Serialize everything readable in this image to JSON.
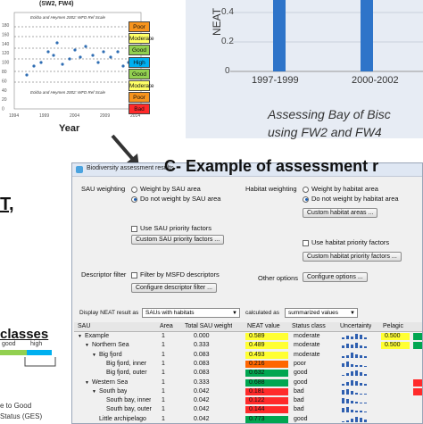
{
  "left_chart": {
    "title_fragment": "(SW2, FW4)",
    "legend_top": "Eckba and Heymen 2002: WFD Ref Scale",
    "legend_bottom": "Eckba and Heymen 2002: WFD Ref Scale",
    "xlabel": "Year",
    "y_ticks": [
      "180",
      "160",
      "140",
      "120",
      "100",
      "80",
      "60",
      "40",
      "20",
      "0"
    ],
    "x_ticks": [
      "1994",
      "1999",
      "2004",
      "2009",
      "2014"
    ],
    "classes": [
      {
        "label": "Poor",
        "color": "#f7941d"
      },
      {
        "label": "Moderate",
        "color": "#ffff66"
      },
      {
        "label": "Good",
        "color": "#92d050"
      },
      {
        "label": "High",
        "color": "#00b0f0"
      },
      {
        "label": "Good",
        "color": "#92d050"
      },
      {
        "label": "Moderate",
        "color": "#ffff66"
      },
      {
        "label": "Poor",
        "color": "#f7941d"
      },
      {
        "label": "Bad",
        "color": "#ff2a2a"
      }
    ],
    "thresholds": [
      "poor",
      "mod",
      "good",
      "high",
      "mod",
      "poor"
    ]
  },
  "bar_chart": {
    "ylabel": "NEAT",
    "y_ticks": [
      "0.4",
      "0.2",
      "0"
    ],
    "categories": [
      "1997-1999",
      "2000-2002"
    ],
    "bar_color": "#2e74c9",
    "caption_line1": "Assessing Bay of Bisc",
    "caption_line2": "using FW2 and FW4"
  },
  "heading": "C- Example of assessment r",
  "left_text": {
    "t": "T,",
    "classes": "classes",
    "good": "good",
    "high": "high",
    "to_good": "e to Good",
    "status": "Status (GES)"
  },
  "dialog": {
    "title": "Biodiversity assessment results",
    "sau_weighting_label": "SAU weighting",
    "sau_option_1": "Weight by SAU area",
    "sau_option_2": "Do not weight by SAU area",
    "habitat_weighting_label": "Habitat weighting",
    "hab_option_1": "Weight by habitat area",
    "hab_option_2": "Do not weight by habitat area",
    "custom_habitat_areas": "Custom habitat areas ...",
    "use_sau_priority": "Use SAU priority factors",
    "custom_sau_priority": "Custom SAU priority factors ...",
    "use_habitat_priority": "Use habitat priority factors",
    "custom_habitat_priority": "Custom habitat priority factors ...",
    "descriptor_filter_label": "Descriptor filter",
    "filter_msfd": "Filter by MSFD descriptors",
    "configure_descriptor_filter": "Configure descriptor filter ...",
    "other_options_label": "Other options",
    "configure_options": "Configure options ...",
    "display_label": "Display NEAT result as",
    "display_value": "SAUs with habitats",
    "calculated_label": "calculated as",
    "calculated_value": "summarized values"
  },
  "table": {
    "headers": [
      "SAU",
      "Area",
      "Total SAU weight",
      "NEAT value",
      "Status class",
      "Uncertainty",
      "Pelagic",
      ""
    ],
    "rows": [
      {
        "sau": "Example",
        "indent": 0,
        "tw": "v",
        "area": "1",
        "weight": "0.000",
        "neat": "0.589",
        "color": "#ffff33",
        "status": "moderate",
        "pel": "0.500",
        "pelcolor": "#ffff33",
        "last": "#00a651"
      },
      {
        "sau": "Northern Sea",
        "indent": 1,
        "tw": "v",
        "area": "1",
        "weight": "0.333",
        "neat": "0.489",
        "color": "#ffff33",
        "status": "moderate",
        "pel": "0.500",
        "pelcolor": "#ffff33",
        "last": "#00a651"
      },
      {
        "sau": "Big fjord",
        "indent": 2,
        "tw": "v",
        "area": "1",
        "weight": "0.083",
        "neat": "0.493",
        "color": "#ffff33",
        "status": "moderate",
        "pel": "",
        "pelcolor": "",
        "last": ""
      },
      {
        "sau": "Big fjord, inner",
        "indent": 3,
        "tw": "",
        "area": "1",
        "weight": "0.083",
        "neat": "0.216",
        "color": "#ff6600",
        "status": "poor",
        "pel": "",
        "pelcolor": "",
        "last": ""
      },
      {
        "sau": "Big fjord, outer",
        "indent": 3,
        "tw": "",
        "area": "1",
        "weight": "0.083",
        "neat": "0.632",
        "color": "#00a651",
        "status": "good",
        "pel": "",
        "pelcolor": "",
        "last": ""
      },
      {
        "sau": "Western Sea",
        "indent": 1,
        "tw": "v",
        "area": "1",
        "weight": "0.333",
        "neat": "0.688",
        "color": "#00a651",
        "status": "good",
        "pel": "",
        "pelcolor": "",
        "last": "#ff2a2a"
      },
      {
        "sau": "South bay",
        "indent": 2,
        "tw": "v",
        "area": "1",
        "weight": "0.042",
        "neat": "0.181",
        "color": "#ff2a2a",
        "status": "bad",
        "pel": "",
        "pelcolor": "",
        "last": "#ff2a2a"
      },
      {
        "sau": "South bay, inner",
        "indent": 3,
        "tw": "",
        "area": "1",
        "weight": "0.042",
        "neat": "0.122",
        "color": "#ff2a2a",
        "status": "bad",
        "pel": "",
        "pelcolor": "",
        "last": ""
      },
      {
        "sau": "South bay, outer",
        "indent": 3,
        "tw": "",
        "area": "1",
        "weight": "0.042",
        "neat": "0.144",
        "color": "#ff2a2a",
        "status": "bad",
        "pel": "",
        "pelcolor": "",
        "last": ""
      },
      {
        "sau": "Little archipelago",
        "indent": 2,
        "tw": "",
        "area": "1",
        "weight": "0.042",
        "neat": "0.773",
        "color": "#00a651",
        "status": "good",
        "pel": "",
        "pelcolor": "",
        "last": ""
      }
    ]
  }
}
